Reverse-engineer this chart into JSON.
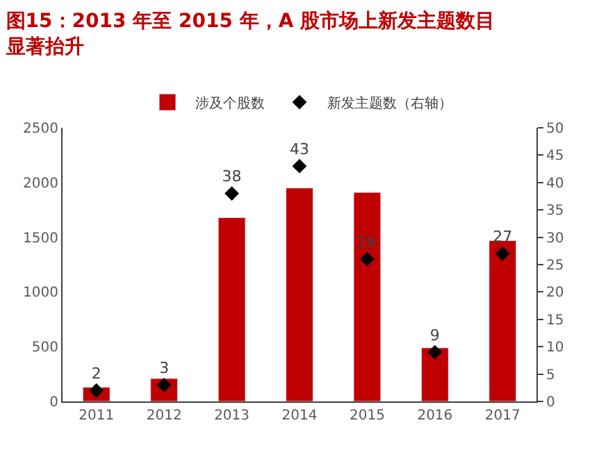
{
  "chart_data": {
    "type": "bar",
    "title": "图15：2013 年至 2015 年，A 股市场上新发主题数目显著抬升",
    "categories": [
      "2011",
      "2012",
      "2013",
      "2014",
      "2015",
      "2016",
      "2017"
    ],
    "series": [
      {
        "name": "涉及个股数",
        "color": "#c00000",
        "values": [
          130,
          210,
          1680,
          1950,
          1910,
          490,
          1470
        ]
      },
      {
        "name": "新发主题数（右轴）",
        "type": "scatter",
        "axis": "y2",
        "color": "#000000",
        "marker": "diamond",
        "values": [
          2,
          3,
          38,
          43,
          26,
          9,
          27
        ],
        "value_labels": [
          "2",
          "3",
          "38",
          "43",
          "26",
          "9",
          "27"
        ]
      }
    ],
    "ylim": [
      0,
      2500
    ],
    "yticks": [
      0,
      500,
      1000,
      1500,
      2000,
      2500
    ],
    "y2lim": [
      0,
      50
    ],
    "y2ticks": [
      0,
      5,
      10,
      15,
      20,
      25,
      30,
      35,
      40,
      45,
      50
    ],
    "legend": "top"
  }
}
